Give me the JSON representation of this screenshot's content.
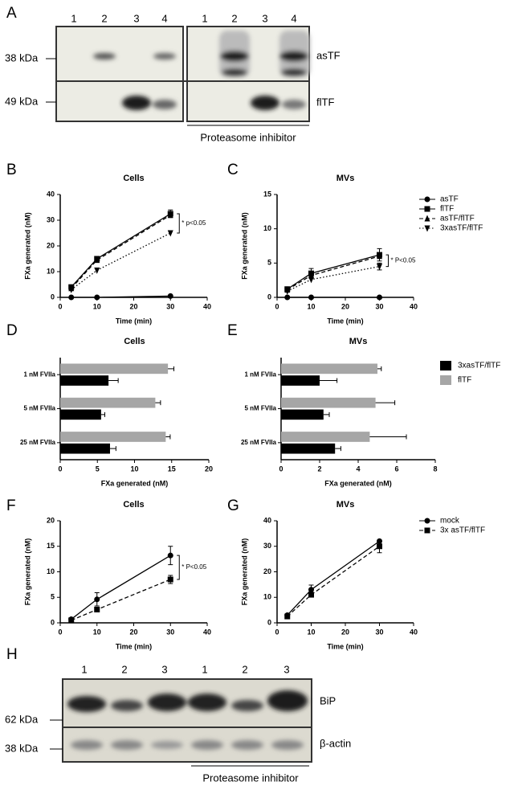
{
  "blots": [
    {
      "panel": "A",
      "lanes": [
        "1",
        "2",
        "3",
        "4",
        "1",
        "2",
        "3",
        "4"
      ],
      "markers": [
        "38 kDa",
        "49 kDa"
      ],
      "rows": [
        "asTF",
        "flTF"
      ],
      "bracket_label": "Proteasome inhibitor"
    },
    {
      "panel": "H",
      "lanes": [
        "1",
        "2",
        "3",
        "1",
        "2",
        "3"
      ],
      "markers": [
        "62 kDa",
        "38 kDa"
      ],
      "rows": [
        "BiP",
        "β-actin"
      ],
      "bracket_label": "Proteasome inhibitor"
    }
  ],
  "chart_data": [
    {
      "type": "line",
      "panel": "B",
      "title": "Cells",
      "xlabel": "Time (min)",
      "ylabel": "FXa generated (nM)",
      "x": [
        3,
        10,
        30
      ],
      "xlim": [
        0,
        40
      ],
      "xticks": [
        0,
        10,
        20,
        30,
        40
      ],
      "ylim": [
        0,
        40
      ],
      "yticks": [
        0,
        10,
        20,
        30,
        40
      ],
      "annotation": "* p<0.05",
      "series": [
        {
          "marker": "circle",
          "dash": "solid",
          "color": "#000000",
          "values": [
            0,
            0,
            0.5
          ]
        },
        {
          "marker": "square",
          "dash": "solid",
          "color": "#000000",
          "values": [
            4,
            15,
            32.5
          ],
          "errors": [
            null,
            null,
            1.5
          ]
        },
        {
          "marker": "triangle",
          "dash": "dashed",
          "color": "#000000",
          "values": [
            3.5,
            14.5,
            32
          ]
        },
        {
          "marker": "triangle-down",
          "dash": "dotted",
          "color": "#000000",
          "values": [
            3,
            10.5,
            25
          ]
        }
      ]
    },
    {
      "type": "line",
      "panel": "C",
      "title": "MVs",
      "xlabel": "Time (min)",
      "ylabel": "FXa generated (nM)",
      "x": [
        3,
        10,
        30
      ],
      "xlim": [
        0,
        40
      ],
      "xticks": [
        0,
        10,
        20,
        30,
        40
      ],
      "ylim": [
        0,
        15
      ],
      "yticks": [
        0,
        5,
        10,
        15
      ],
      "annotation": "* P<0.05",
      "legend": true,
      "series": [
        {
          "name": "asTF",
          "marker": "circle",
          "dash": "solid",
          "color": "#000000",
          "values": [
            0,
            0,
            0
          ]
        },
        {
          "name": "flTF",
          "marker": "square",
          "dash": "solid",
          "color": "#000000",
          "values": [
            1.2,
            3.5,
            6.2
          ],
          "errors": [
            null,
            0.7,
            0.9
          ]
        },
        {
          "name": "asTF/flTF",
          "marker": "triangle",
          "dash": "dashed",
          "color": "#000000",
          "values": [
            1.1,
            3.2,
            6.0
          ]
        },
        {
          "name": "3xasTF/flTF",
          "marker": "triangle-down",
          "dash": "dotted",
          "color": "#000000",
          "values": [
            0.9,
            2.6,
            4.5
          ],
          "errors": [
            null,
            null,
            0.5
          ]
        }
      ]
    },
    {
      "type": "hbar",
      "panel": "D",
      "title": "Cells",
      "xlabel": "FXa generated (nM)",
      "categories": [
        "1 nM FVIIa",
        "5 nM FVIIa",
        "25 nM FVIIa"
      ],
      "xlim": [
        0,
        20
      ],
      "xticks": [
        0,
        5,
        10,
        15,
        20
      ],
      "series": [
        {
          "color": "#000000",
          "values": [
            6.5,
            5.5,
            6.7
          ],
          "errors": [
            1.3,
            0.5,
            0.8
          ]
        },
        {
          "color": "#a6a6a6",
          "values": [
            14.5,
            12.8,
            14.2
          ],
          "errors": [
            0.8,
            0.7,
            0.6
          ]
        }
      ]
    },
    {
      "type": "hbar",
      "panel": "E",
      "title": "MVs",
      "xlabel": "FXa generated (nM)",
      "legend": true,
      "categories": [
        "1 nM FVIIa",
        "5 nM FVIIa",
        "25 nM FVIIa"
      ],
      "xlim": [
        0,
        8
      ],
      "xticks": [
        0,
        2,
        4,
        6,
        8
      ],
      "series": [
        {
          "name": "3xasTF/flTF",
          "color": "#000000",
          "values": [
            2.0,
            2.2,
            2.8
          ],
          "errors": [
            0.9,
            0.3,
            0.3
          ]
        },
        {
          "name": "flTF",
          "color": "#a6a6a6",
          "values": [
            5.0,
            4.9,
            4.6
          ],
          "errors": [
            0.2,
            1.0,
            1.9
          ]
        }
      ]
    },
    {
      "type": "line",
      "panel": "F",
      "title": "Cells",
      "xlabel": "Time (min)",
      "ylabel": "FXa generated (nM)",
      "x": [
        3,
        10,
        30
      ],
      "xlim": [
        0,
        40
      ],
      "xticks": [
        0,
        10,
        20,
        30,
        40
      ],
      "ylim": [
        0,
        20
      ],
      "yticks": [
        0,
        5,
        10,
        15,
        20
      ],
      "annotation": "* P<0.05",
      "series": [
        {
          "marker": "circle",
          "dash": "solid",
          "color": "#000000",
          "values": [
            0.7,
            4.6,
            13.2
          ],
          "errors": [
            null,
            1.3,
            1.8
          ]
        },
        {
          "marker": "square",
          "dash": "dashed",
          "color": "#000000",
          "values": [
            0.5,
            2.6,
            8.5
          ],
          "errors": [
            null,
            null,
            0.8
          ]
        }
      ]
    },
    {
      "type": "line",
      "panel": "G",
      "title": "MVs",
      "xlabel": "Time (min)",
      "ylabel": "FXa generated (nM)",
      "x": [
        3,
        10,
        30
      ],
      "xlim": [
        0,
        40
      ],
      "xticks": [
        0,
        10,
        20,
        30,
        40
      ],
      "ylim": [
        0,
        40
      ],
      "yticks": [
        0,
        10,
        20,
        30,
        40
      ],
      "legend": true,
      "series": [
        {
          "name": "mock",
          "marker": "circle",
          "dash": "solid",
          "color": "#000000",
          "values": [
            3,
            13,
            32
          ],
          "errors": [
            null,
            1.8,
            null
          ]
        },
        {
          "name": "3x asTF/flTF",
          "marker": "square",
          "dash": "dashed",
          "color": "#000000",
          "values": [
            2.5,
            11,
            30
          ],
          "errors": [
            null,
            null,
            2.5
          ]
        }
      ]
    }
  ]
}
